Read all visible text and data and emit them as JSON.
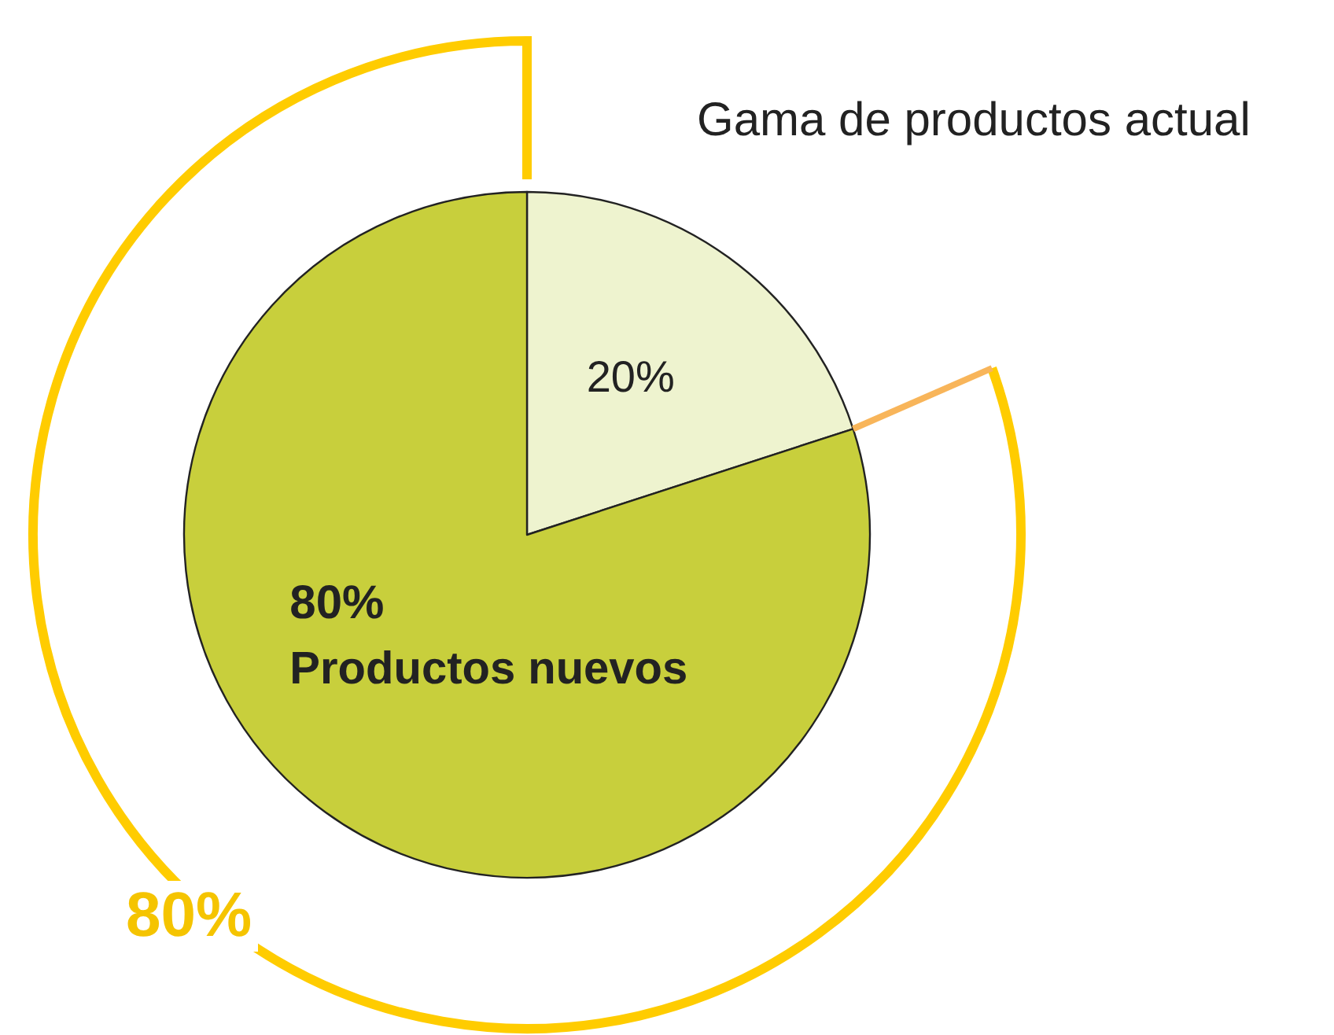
{
  "chart_data": {
    "type": "pie",
    "categories": [
      "Gama de productos actual",
      "Productos nuevos"
    ],
    "values": [
      20,
      80
    ],
    "colors": [
      "#eef3cf",
      "#c8cf3c"
    ],
    "value_labels": [
      "20%",
      "80%"
    ],
    "annotations": [
      "80%"
    ]
  }
}
